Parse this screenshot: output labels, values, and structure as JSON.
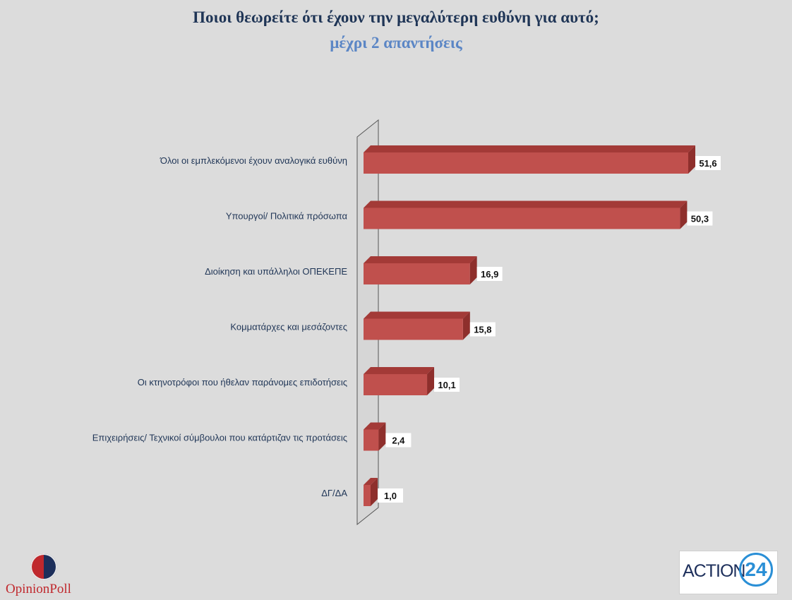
{
  "chart_data": {
    "type": "bar",
    "orientation": "horizontal",
    "title": "Ποιοι θεωρείτε ότι έχουν την μεγαλύτερη ευθύνη για αυτό;",
    "subtitle": "μέχρι 2 απαντήσεις",
    "categories": [
      "Όλοι οι εμπλεκόμενοι έχουν αναλογικά ευθύνη",
      "Υπουργοί/ Πολιτικά πρόσωπα",
      "Διοίκηση και υπάλληλοι ΟΠΕΚΕΠΕ",
      "Κομματάρχες και μεσάζοντες",
      "Οι κτηνοτρόφοι που ήθελαν παράνομες επιδοτήσεις",
      "Επιχειρήσεις/ Τεχνικοί σύμβουλοι που κατάρτιζαν τις προτάσεις",
      "ΔΓ/ΔΑ"
    ],
    "values": [
      51.6,
      50.3,
      16.9,
      15.8,
      10.1,
      2.4,
      1.0
    ],
    "value_labels": [
      "51,6",
      "50,3",
      "16,9",
      "15,8",
      "10,1",
      "2,4",
      "1,0"
    ],
    "xlim": [
      0,
      60
    ],
    "grid": false,
    "bar_color": "#c0504d",
    "bar_top_color": "#a33a37",
    "bar_side_color": "#8e2f2c"
  },
  "logos": {
    "left": "OpinionPoll",
    "right_text": "ACTION",
    "right_number": "24"
  }
}
